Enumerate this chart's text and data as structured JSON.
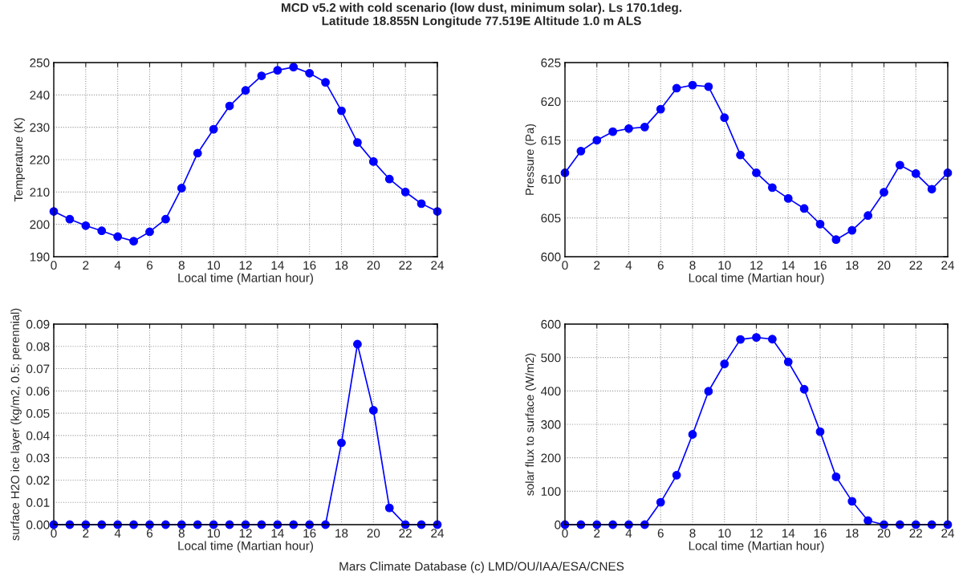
{
  "chart_data": [
    {
      "type": "line",
      "title": "MCD v5.2 with cold scenario (low dust, minimum solar). Ls 170.1deg.\nLatitude 18.855N Longitude 77.519E Altitude 1.0 m ALS",
      "xlabel": "Local time (Martian hour)",
      "ylabel": "Temperature (K)",
      "color": "#0000ff",
      "marker": "circle",
      "line_style": "solid",
      "grid": true,
      "x": [
        0,
        1,
        2,
        3,
        4,
        5,
        6,
        7,
        8,
        9,
        10,
        11,
        12,
        13,
        14,
        15,
        16,
        17,
        18,
        19,
        20,
        21,
        22,
        23,
        24
      ],
      "values": [
        204,
        201.6,
        199.6,
        198,
        196.2,
        194.8,
        197.7,
        201.6,
        211.2,
        222,
        229.4,
        236.6,
        241.4,
        245.9,
        247.6,
        248.6,
        246.7,
        243.9,
        235.1,
        225.3,
        219.4,
        214,
        210,
        206.4,
        204
      ],
      "xlim": [
        0,
        24
      ],
      "xticks": [
        0,
        2,
        4,
        6,
        8,
        10,
        12,
        14,
        16,
        18,
        20,
        22,
        24
      ],
      "ylim": [
        190,
        250
      ],
      "yticks": [
        190,
        200,
        210,
        220,
        230,
        240,
        250
      ]
    },
    {
      "type": "line",
      "xlabel": "Local time (Martian hour)",
      "ylabel": "Pressure (Pa)",
      "color": "#0000ff",
      "marker": "circle",
      "line_style": "solid",
      "grid": true,
      "x": [
        0,
        1,
        2,
        3,
        4,
        5,
        6,
        7,
        8,
        9,
        10,
        11,
        12,
        13,
        14,
        15,
        16,
        17,
        18,
        19,
        20,
        21,
        22,
        23,
        24
      ],
      "values": [
        610.8,
        613.6,
        615,
        616.1,
        616.5,
        616.7,
        619,
        621.7,
        622.1,
        621.9,
        617.9,
        613.1,
        610.8,
        608.9,
        607.5,
        606.2,
        604.2,
        602.2,
        603.4,
        605.3,
        608.3,
        611.8,
        610.7,
        608.7,
        610.8
      ],
      "xlim": [
        0,
        24
      ],
      "xticks": [
        0,
        2,
        4,
        6,
        8,
        10,
        12,
        14,
        16,
        18,
        20,
        22,
        24
      ],
      "ylim": [
        600,
        625
      ],
      "yticks": [
        600,
        605,
        610,
        615,
        620,
        625
      ]
    },
    {
      "type": "line",
      "xlabel": "Local time (Martian hour)",
      "ylabel": "surface H2O ice layer (kg/m2, 0.5: perennial)",
      "color": "#0000ff",
      "marker": "circle",
      "line_style": "solid",
      "grid": true,
      "x": [
        0,
        1,
        2,
        3,
        4,
        5,
        6,
        7,
        8,
        9,
        10,
        11,
        12,
        13,
        14,
        15,
        16,
        17,
        18,
        19,
        20,
        21,
        22,
        23,
        24
      ],
      "values": [
        0,
        0,
        0,
        0,
        0,
        0,
        0,
        0,
        0,
        0,
        0,
        0,
        0,
        0,
        0,
        0,
        0,
        0,
        0.0367,
        0.081,
        0.0513,
        0.0075,
        0,
        0,
        0
      ],
      "xlim": [
        0,
        24
      ],
      "xticks": [
        0,
        2,
        4,
        6,
        8,
        10,
        12,
        14,
        16,
        18,
        20,
        22,
        24
      ],
      "ylim": [
        0,
        0.09
      ],
      "yticks": [
        {
          "value": 0,
          "label": "0.00"
        },
        {
          "value": 0.01,
          "label": "0.01"
        },
        {
          "value": 0.02,
          "label": "0.02"
        },
        {
          "value": 0.03,
          "label": "0.03"
        },
        {
          "value": 0.04,
          "label": "0.04"
        },
        {
          "value": 0.05,
          "label": "0.05"
        },
        {
          "value": 0.06,
          "label": "0.06"
        },
        {
          "value": 0.07,
          "label": "0.07"
        },
        {
          "value": 0.08,
          "label": "0.08"
        },
        {
          "value": 0.09,
          "label": "0.09"
        }
      ]
    },
    {
      "type": "line",
      "xlabel": "Local time (Martian hour)",
      "ylabel": "solar flux to surface (W/m2)",
      "color": "#0000ff",
      "marker": "circle",
      "line_style": "solid",
      "grid": true,
      "x": [
        0,
        1,
        2,
        3,
        4,
        5,
        6,
        7,
        8,
        9,
        10,
        11,
        12,
        13,
        14,
        15,
        16,
        17,
        18,
        19,
        20,
        21,
        22,
        23,
        24
      ],
      "values": [
        0,
        0,
        0,
        0,
        0,
        0,
        67,
        148,
        270,
        399,
        481,
        554,
        560,
        555,
        487,
        405,
        278,
        143,
        70,
        12,
        0,
        0,
        0,
        0,
        0
      ],
      "xlim": [
        0,
        24
      ],
      "xticks": [
        0,
        2,
        4,
        6,
        8,
        10,
        12,
        14,
        16,
        18,
        20,
        22,
        24
      ],
      "ylim": [
        0,
        600
      ],
      "yticks": [
        0,
        100,
        200,
        300,
        400,
        500,
        600
      ],
      "annotations": [
        "Mars Climate Database (c) LMD/OU/IAA/ESA/CNES"
      ]
    }
  ]
}
